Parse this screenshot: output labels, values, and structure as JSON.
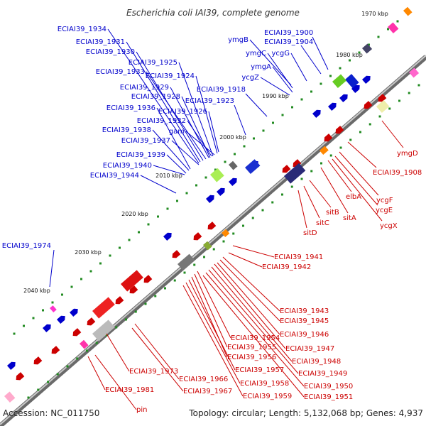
{
  "title": "Escherichia coli IAI39, complete genome",
  "accession": "Accession: NC_011750",
  "summary": "Topology: circular; Length: 5,132,068 bp; Genes: 4,937",
  "colors": {
    "plus": "#0000cc",
    "minus": "#cc0000",
    "backbone": "#7a7a7a",
    "tick": "#228b22"
  },
  "ticks": [
    "1970 kbp",
    "1980 kbp",
    "1990 kbp",
    "2000 kbp",
    "2010 kbp",
    "2020 kbp",
    "2030 kbp",
    "2040 kbp"
  ],
  "plus_labels": [
    "ECIAI39_1934",
    "ECIAI39_1931",
    "ECIAI39_1930",
    "ECIAI39_1925",
    "ECIAI39_1933",
    "ECIAI39_1924",
    "ECIAI39_1929",
    "ECIAI39_1928",
    "ECIAI39_1936",
    "ECIAI39_1926",
    "ECIAI39_1932",
    "ECIAI39_1938",
    "gam",
    "ECIAI39_1937",
    "ECIAI39_1939",
    "ECIAI39_1940",
    "ECIAI39_1944",
    "ECIAI39_1900",
    "ECIAI39_1904",
    "ymgB",
    "ymgC",
    "ycgG",
    "ymgA",
    "ycgZ",
    "ECIAI39_1918",
    "ECIAI39_1923",
    "ECIAI39_1974"
  ],
  "minus_labels": [
    "ymgD",
    "ECIAI39_1908",
    "ycgF",
    "elbA",
    "ycgE",
    "sitA",
    "ycgX",
    "sitB",
    "sitC",
    "sitD",
    "ECIAI39_1941",
    "ECIAI39_1942",
    "ECIAI39_1943",
    "ECIAI39_1945",
    "ECIAI39_1946",
    "ECIAI39_1954",
    "ECIAI39_1947",
    "ECIAI39_1955",
    "ECIAI39_1956",
    "ECIAI39_1948",
    "ECIAI39_1957",
    "ECIAI39_1949",
    "ECIAI39_1958",
    "ECIAI39_1950",
    "ECIAI39_1959",
    "ECIAI39_1951",
    "ECIAI39_1973",
    "ECIAI39_1966",
    "ECIAI39_1967",
    "ECIAI39_1981",
    "pin"
  ]
}
